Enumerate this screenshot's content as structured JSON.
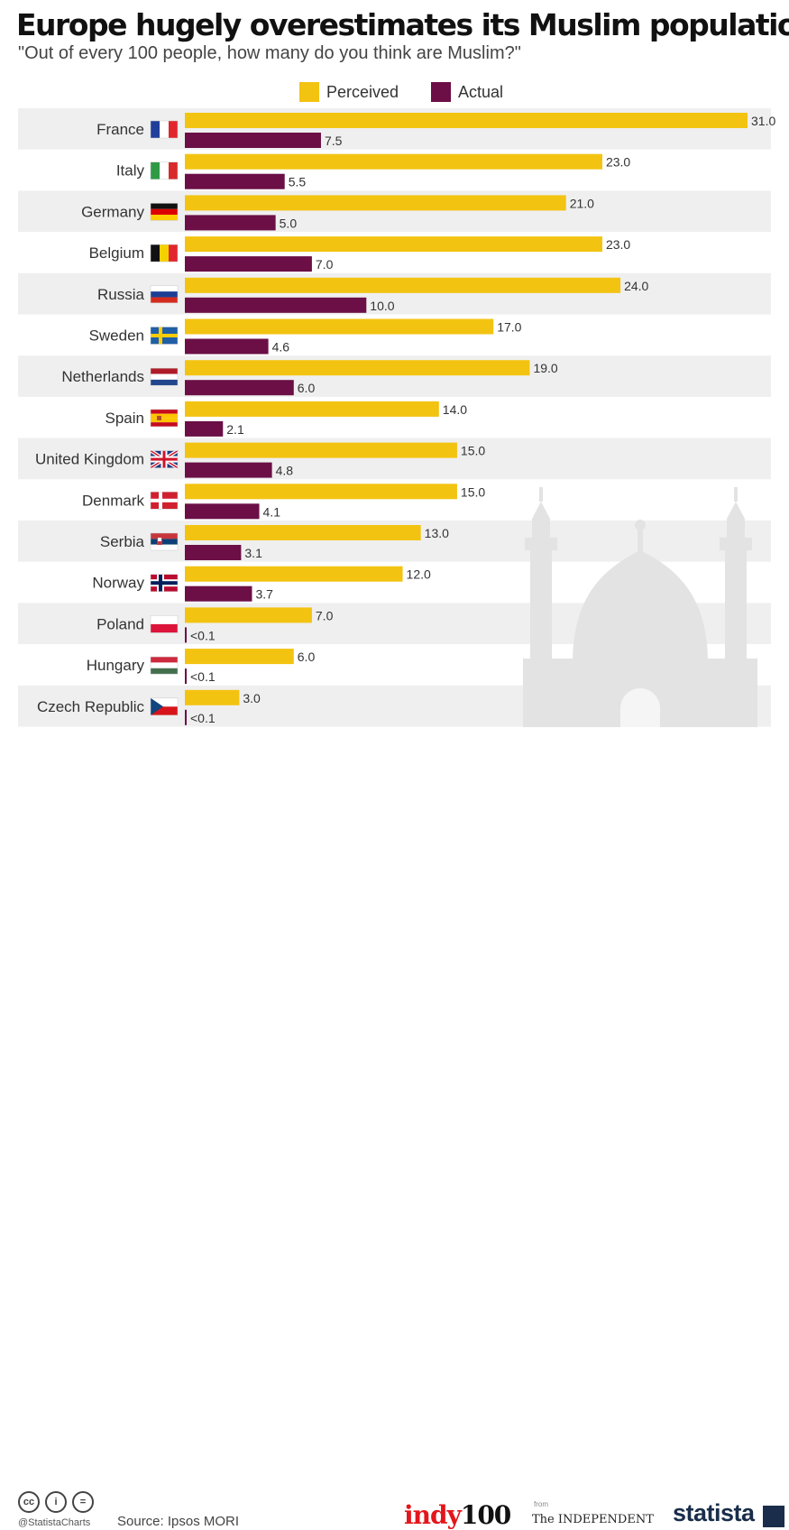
{
  "title": "Europe hugely overestimates its Muslim population",
  "subtitle": "\"Out of every 100 people, how many do you think are Muslim?\"",
  "colors": {
    "perceived": "#f3c311",
    "actual": "#6b0f46",
    "band": "#efefef",
    "watermark": "#e3e3e3"
  },
  "legend": {
    "perceived": "Perceived",
    "actual": "Actual"
  },
  "chart_data": {
    "type": "bar",
    "orientation": "horizontal",
    "title": "Europe hugely overestimates its Muslim population",
    "subtitle": "\"Out of every 100 people, how many do you think are Muslim?\"",
    "categories": [
      "France",
      "Italy",
      "Germany",
      "Belgium",
      "Russia",
      "Sweden",
      "Netherlands",
      "Spain",
      "United Kingdom",
      "Denmark",
      "Serbia",
      "Norway",
      "Poland",
      "Hungary",
      "Czech Republic"
    ],
    "series": [
      {
        "name": "Perceived",
        "values": [
          31.0,
          23.0,
          21.0,
          23.0,
          24.0,
          17.0,
          19.0,
          14.0,
          15.0,
          15.0,
          13.0,
          12.0,
          7.0,
          6.0,
          3.0
        ],
        "labels": [
          "31.0",
          "23.0",
          "21.0",
          "23.0",
          "24.0",
          "17.0",
          "19.0",
          "14.0",
          "15.0",
          "15.0",
          "13.0",
          "12.0",
          "7.0",
          "6.0",
          "3.0"
        ]
      },
      {
        "name": "Actual",
        "values": [
          7.5,
          5.5,
          5.0,
          7.0,
          10.0,
          4.6,
          6.0,
          2.1,
          4.8,
          4.1,
          3.1,
          3.7,
          0.1,
          0.1,
          0.1
        ],
        "labels": [
          "7.5",
          "5.5",
          "5.0",
          "7.0",
          "10.0",
          "4.6",
          "6.0",
          "2.1",
          "4.8",
          "4.1",
          "3.1",
          "3.7",
          "<0.1",
          "<0.1",
          "<0.1"
        ]
      }
    ],
    "xlim": [
      0,
      31
    ],
    "legend_position": "top-center",
    "grid": false
  },
  "flags": [
    "france-flag-icon",
    "italy-flag-icon",
    "germany-flag-icon",
    "belgium-flag-icon",
    "russia-flag-icon",
    "sweden-flag-icon",
    "netherlands-flag-icon",
    "spain-flag-icon",
    "united-kingdom-flag-icon",
    "denmark-flag-icon",
    "serbia-flag-icon",
    "norway-flag-icon",
    "poland-flag-icon",
    "hungary-flag-icon",
    "czech-republic-flag-icon"
  ],
  "footer": {
    "cc_icons": [
      "cc",
      "i",
      "="
    ],
    "handle": "@StatistaCharts",
    "source": "Source: Ipsos MORI",
    "indy_red": "indy",
    "indy_black": "100",
    "from": "from",
    "independent": "The INDEPENDENT",
    "statista": "statista"
  }
}
